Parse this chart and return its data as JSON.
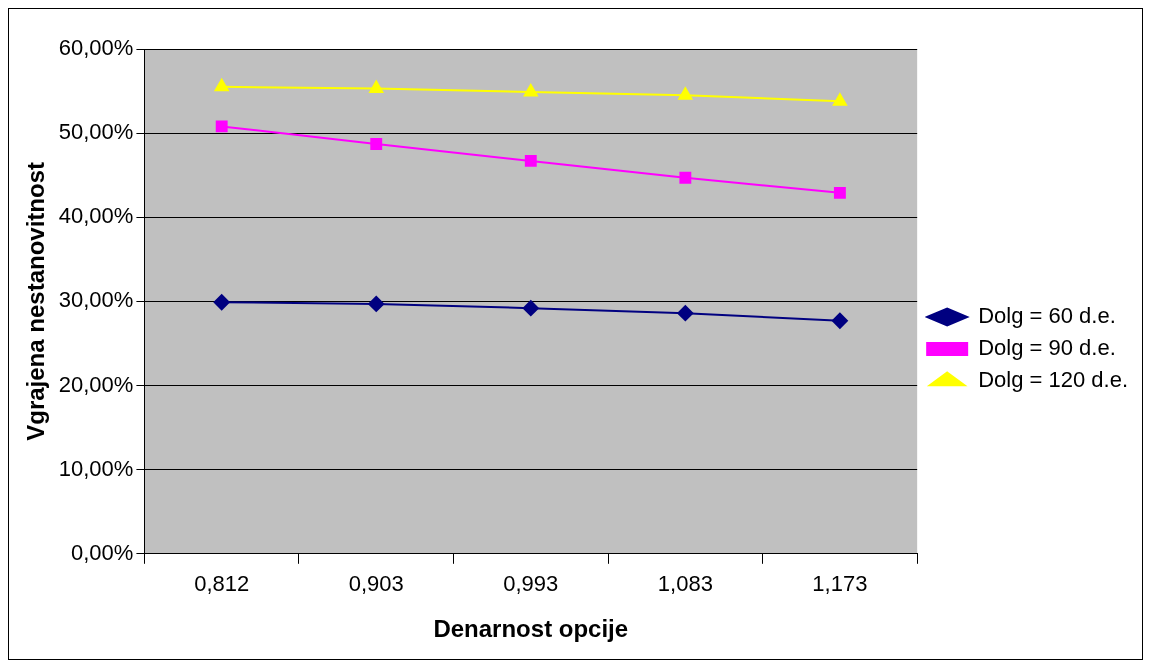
{
  "chart_data": {
    "type": "line",
    "xlabel": "Denarnost opcije",
    "ylabel": "Vgrajena nestanovitnost",
    "categories": [
      "0,812",
      "0,903",
      "0,993",
      "1,083",
      "1,173"
    ],
    "series": [
      {
        "name": "Dolg = 60 d.e.",
        "color": "#000080",
        "marker": "diamond",
        "values": [
          29.9,
          29.7,
          29.2,
          28.6,
          27.7
        ]
      },
      {
        "name": "Dolg = 90 d.e.",
        "color": "#ff00ff",
        "marker": "square",
        "values": [
          50.8,
          48.7,
          46.7,
          44.7,
          42.9
        ]
      },
      {
        "name": "Dolg = 120 d.e.",
        "color": "#ffff00",
        "marker": "triangle",
        "values": [
          55.5,
          55.3,
          54.9,
          54.5,
          53.8
        ]
      }
    ],
    "ylim": [
      0,
      60
    ],
    "yticks": [
      {
        "value": 0,
        "label": "0,00%"
      },
      {
        "value": 10,
        "label": "10,00%"
      },
      {
        "value": 20,
        "label": "20,00%"
      },
      {
        "value": 30,
        "label": "30,00%"
      },
      {
        "value": 40,
        "label": "40,00%"
      },
      {
        "value": 50,
        "label": "50,00%"
      },
      {
        "value": 60,
        "label": "60,00%"
      }
    ],
    "grid": "y",
    "legend": "right",
    "line_style": "solid"
  }
}
